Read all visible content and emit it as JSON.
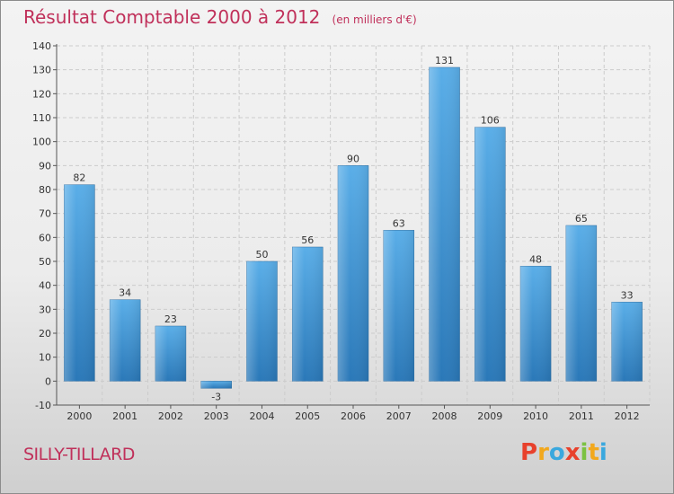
{
  "title": "Résultat Comptable 2000 à 2012",
  "unit": "(en milliers d'€)",
  "city": "SILLY-TILLARD",
  "brand": {
    "letters": [
      "P",
      "r",
      "o",
      "x",
      "i",
      "t",
      "i"
    ],
    "colors": [
      "#e8412c",
      "#f2a81d",
      "#3aa8de",
      "#e8412c",
      "#7cc242",
      "#f2a81d",
      "#3aa8de"
    ]
  },
  "colors": {
    "bar_top": "#5aaee8",
    "bar_bottom": "#2a78b8",
    "accent": "#c0305a",
    "grid": "#cccccc"
  },
  "chart_data": {
    "type": "bar",
    "title": "Résultat Comptable 2000 à 2012",
    "categories": [
      "2000",
      "2001",
      "2002",
      "2003",
      "2004",
      "2005",
      "2006",
      "2007",
      "2008",
      "2009",
      "2010",
      "2011",
      "2012"
    ],
    "values": [
      82,
      34,
      23,
      -3,
      50,
      56,
      90,
      63,
      131,
      106,
      48,
      65,
      33
    ],
    "ylim": [
      -10,
      140
    ],
    "yticks": [
      -10,
      0,
      10,
      20,
      30,
      40,
      50,
      60,
      70,
      80,
      90,
      100,
      110,
      120,
      130,
      140
    ],
    "grid": true,
    "xlabel": "",
    "ylabel": ""
  }
}
